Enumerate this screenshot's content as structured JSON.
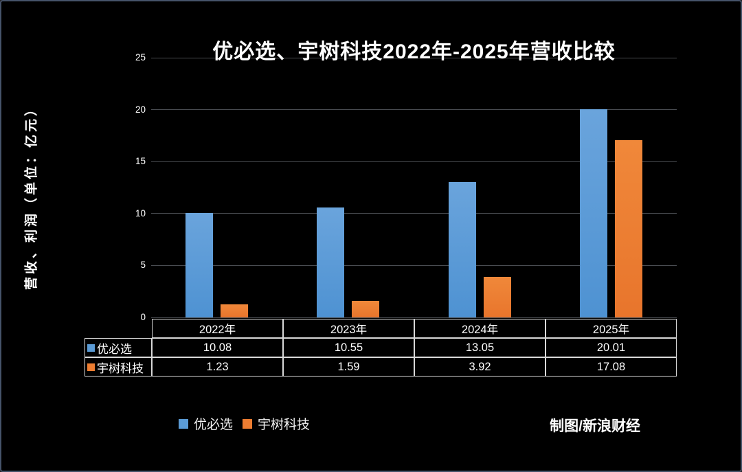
{
  "title": "优必选、宇树科技2022年-2025年营收比较",
  "y_axis_label": "营收、利润（单位：亿元）",
  "credit": "制图/新浪财经",
  "chart_data": {
    "type": "bar",
    "categories": [
      "2022年",
      "2023年",
      "2024年",
      "2025年"
    ],
    "series": [
      {
        "name": "优必选",
        "color": "#5b9bd5",
        "values": [
          10.08,
          10.55,
          13.05,
          20.01
        ]
      },
      {
        "name": "宇树科技",
        "color": "#ed7d31",
        "values": [
          1.23,
          1.59,
          3.92,
          17.08
        ]
      }
    ],
    "title": "优必选、宇树科技2022年-2025年营收比较",
    "xlabel": "",
    "ylabel": "营收、利润（单位：亿元）",
    "ylim": [
      0,
      25
    ],
    "yticks": [
      0,
      5,
      10,
      15,
      20,
      25
    ],
    "grid": true,
    "background": "#000000",
    "gridline_color": "#4a4d52",
    "legend_position": "bottom"
  },
  "table": {
    "columns": [
      "2022年",
      "2023年",
      "2024年",
      "2025年"
    ],
    "rows": [
      {
        "label": "优必选",
        "color": "#5b9bd5",
        "values": [
          "10.08",
          "10.55",
          "13.05",
          "20.01"
        ]
      },
      {
        "label": "宇树科技",
        "color": "#ed7d31",
        "values": [
          "1.23",
          "1.59",
          "3.92",
          "17.08"
        ]
      }
    ]
  },
  "legend": {
    "items": [
      {
        "label": "优必选",
        "color": "#5b9bd5"
      },
      {
        "label": "宇树科技",
        "color": "#ed7d31"
      }
    ]
  }
}
